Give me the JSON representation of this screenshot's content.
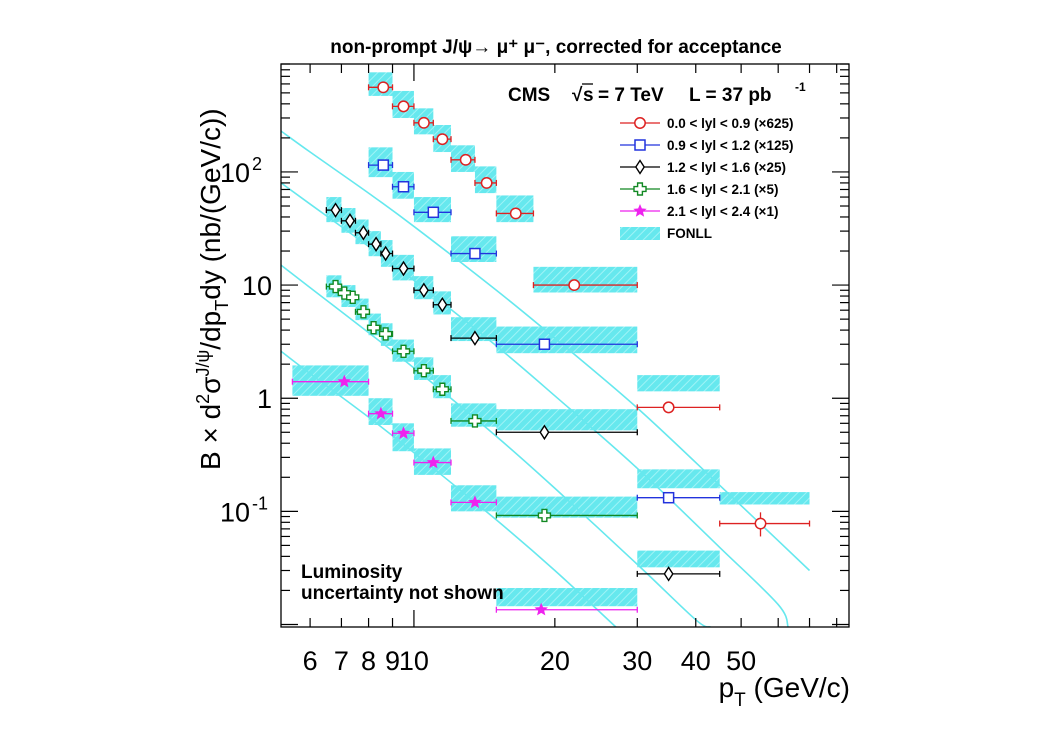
{
  "chart_data": {
    "type": "scatter",
    "title": "non-prompt J/ψ→ μ⁺ μ⁻, corrected for acceptance",
    "xlabel": "p_T (GeV/c)",
    "ylabel": "B × d²σ^{J/ψ}/dp_T dy (nb/(GeV/c))",
    "xscale": "log",
    "yscale": "log",
    "xlim": [
      5.2,
      85
    ],
    "ylim": [
      0.0095,
      900
    ],
    "x_ticks": [
      {
        "value": 6,
        "label": "6"
      },
      {
        "value": 7,
        "label": "7"
      },
      {
        "value": 8,
        "label": "8"
      },
      {
        "value": 9,
        "label": "9"
      },
      {
        "value": 10,
        "label": "10"
      },
      {
        "value": 20,
        "label": "20"
      },
      {
        "value": 30,
        "label": "30"
      },
      {
        "value": 40,
        "label": "40"
      },
      {
        "value": 50,
        "label": "50"
      }
    ],
    "y_ticks": [
      {
        "value": 0.1,
        "label": "10",
        "sup": "-1"
      },
      {
        "value": 1,
        "label": "1",
        "sup": ""
      },
      {
        "value": 10,
        "label": "10",
        "sup": ""
      },
      {
        "value": 100,
        "label": "10",
        "sup": "2"
      }
    ],
    "experiment": "CMS",
    "energy_label": "s",
    "energy_value": "= 7 TeV",
    "lumi_label": "L = 37 pb",
    "lumi_exp": "-1",
    "annotation_line1": "Luminosity",
    "annotation_line2": "uncertainty not shown",
    "theory": {
      "name": "FONLL",
      "color": "#66e8ee"
    },
    "series": [
      {
        "name": "0.0 < lyl < 0.9 (×625)",
        "marker": "circle",
        "color": "#dd2222",
        "points": [
          {
            "x": 8.6,
            "xlo": 8.0,
            "xhi": 9.0,
            "y": 560
          },
          {
            "x": 9.5,
            "xlo": 9.0,
            "xhi": 10.0,
            "y": 380
          },
          {
            "x": 10.5,
            "xlo": 10.0,
            "xhi": 11.0,
            "y": 272
          },
          {
            "x": 11.5,
            "xlo": 11.0,
            "xhi": 12.0,
            "y": 195
          },
          {
            "x": 12.9,
            "xlo": 12.0,
            "xhi": 13.5,
            "y": 128
          },
          {
            "x": 14.3,
            "xlo": 13.5,
            "xhi": 15.0,
            "y": 80
          },
          {
            "x": 16.5,
            "xlo": 15.0,
            "xhi": 18.0,
            "y": 43
          },
          {
            "x": 22.0,
            "xlo": 18.0,
            "xhi": 30.0,
            "y": 10
          },
          {
            "x": 35.0,
            "xlo": 30.0,
            "xhi": 45.0,
            "y": 0.83
          },
          {
            "x": 55.0,
            "xlo": 45.0,
            "xhi": 70.0,
            "y": 0.078,
            "ylo": 0.06,
            "yhi": 0.098
          }
        ],
        "bands": [
          {
            "xlo": 8.0,
            "xhi": 9.0,
            "ylo": 470,
            "yhi": 760
          },
          {
            "xlo": 9.0,
            "xhi": 10.0,
            "ylo": 300,
            "yhi": 520
          },
          {
            "xlo": 10.0,
            "xhi": 11.0,
            "ylo": 215,
            "yhi": 365
          },
          {
            "xlo": 11.0,
            "xhi": 12.0,
            "ylo": 150,
            "yhi": 260
          },
          {
            "xlo": 12.0,
            "xhi": 13.5,
            "ylo": 100,
            "yhi": 172
          },
          {
            "xlo": 13.5,
            "xhi": 15.0,
            "ylo": 65,
            "yhi": 112
          },
          {
            "xlo": 15.0,
            "xhi": 18.0,
            "ylo": 36,
            "yhi": 62
          },
          {
            "xlo": 18.0,
            "xhi": 30.0,
            "ylo": 8.6,
            "yhi": 14.5
          },
          {
            "xlo": 30.0,
            "xhi": 45.0,
            "ylo": 1.15,
            "yhi": 1.6
          },
          {
            "xlo": 45.0,
            "xhi": 70.0,
            "ylo": 0.115,
            "yhi": 0.148
          }
        ],
        "curve": [
          [
            5.2,
            230
          ],
          [
            6,
            150
          ],
          [
            8,
            65
          ],
          [
            10,
            33
          ],
          [
            15,
            9
          ],
          [
            20,
            3.4
          ],
          [
            30,
            0.82
          ],
          [
            45,
            0.17
          ],
          [
            60,
            0.055
          ],
          [
            70,
            0.03
          ]
        ]
      },
      {
        "name": "0.9 < lyl < 1.2 (×125)",
        "marker": "square",
        "color": "#2233dd",
        "points": [
          {
            "x": 8.6,
            "xlo": 8.0,
            "xhi": 9.0,
            "y": 115
          },
          {
            "x": 9.5,
            "xlo": 9.0,
            "xhi": 10.0,
            "y": 74
          },
          {
            "x": 11.0,
            "xlo": 10.0,
            "xhi": 12.0,
            "y": 44
          },
          {
            "x": 13.5,
            "xlo": 12.0,
            "xhi": 15.0,
            "y": 19
          },
          {
            "x": 19.0,
            "xlo": 15.0,
            "xhi": 30.0,
            "y": 3.0
          },
          {
            "x": 35.0,
            "xlo": 30.0,
            "xhi": 45.0,
            "y": 0.132
          }
        ],
        "bands": [
          {
            "xlo": 8.0,
            "xhi": 9.0,
            "ylo": 90,
            "yhi": 165
          },
          {
            "xlo": 9.0,
            "xhi": 10.0,
            "ylo": 58,
            "yhi": 100
          },
          {
            "xlo": 10.0,
            "xhi": 12.0,
            "ylo": 36,
            "yhi": 60
          },
          {
            "xlo": 12.0,
            "xhi": 15.0,
            "ylo": 16,
            "yhi": 27
          },
          {
            "xlo": 15.0,
            "xhi": 30.0,
            "ylo": 2.5,
            "yhi": 4.3
          },
          {
            "xlo": 30.0,
            "xhi": 45.0,
            "ylo": 0.16,
            "yhi": 0.235
          }
        ],
        "curve": [
          [
            5.2,
            80
          ],
          [
            6,
            52
          ],
          [
            8,
            22
          ],
          [
            10,
            11
          ],
          [
            15,
            2.9
          ],
          [
            20,
            1.05
          ],
          [
            30,
            0.24
          ],
          [
            45,
            0.048
          ],
          [
            60,
            0.015
          ],
          [
            63,
            0.0095
          ]
        ]
      },
      {
        "name": "1.2 < lyl < 1.6 (×25)",
        "marker": "diamond",
        "color": "#000000",
        "points": [
          {
            "x": 6.8,
            "xlo": 6.5,
            "xhi": 7.0,
            "y": 46
          },
          {
            "x": 7.3,
            "xlo": 7.0,
            "xhi": 7.5,
            "y": 37
          },
          {
            "x": 7.8,
            "xlo": 7.5,
            "xhi": 8.0,
            "y": 29
          },
          {
            "x": 8.3,
            "xlo": 8.0,
            "xhi": 8.5,
            "y": 23
          },
          {
            "x": 8.7,
            "xlo": 8.5,
            "xhi": 9.0,
            "y": 19
          },
          {
            "x": 9.5,
            "xlo": 9.0,
            "xhi": 10.0,
            "y": 14
          },
          {
            "x": 10.5,
            "xlo": 10.0,
            "xhi": 11.0,
            "y": 9.0
          },
          {
            "x": 11.5,
            "xlo": 11.0,
            "xhi": 12.0,
            "y": 6.7
          },
          {
            "x": 13.5,
            "xlo": 12.0,
            "xhi": 15.0,
            "y": 3.4
          },
          {
            "x": 19.0,
            "xlo": 15.0,
            "xhi": 30.0,
            "y": 0.5
          },
          {
            "x": 35.0,
            "xlo": 30.0,
            "xhi": 45.0,
            "y": 0.028
          }
        ],
        "bands": [
          {
            "xlo": 6.5,
            "xhi": 7.0,
            "ylo": 36,
            "yhi": 60
          },
          {
            "xlo": 7.0,
            "xhi": 7.5,
            "ylo": 29,
            "yhi": 48
          },
          {
            "xlo": 7.5,
            "xhi": 8.0,
            "ylo": 23,
            "yhi": 38
          },
          {
            "xlo": 8.0,
            "xhi": 8.5,
            "ylo": 18,
            "yhi": 30
          },
          {
            "xlo": 8.5,
            "xhi": 9.0,
            "ylo": 14.5,
            "yhi": 25
          },
          {
            "xlo": 9.0,
            "xhi": 10.0,
            "ylo": 11,
            "yhi": 18.5
          },
          {
            "xlo": 10.0,
            "xhi": 11.0,
            "ylo": 7.5,
            "yhi": 12
          },
          {
            "xlo": 11.0,
            "xhi": 12.0,
            "ylo": 5.5,
            "yhi": 8.8
          },
          {
            "xlo": 12.0,
            "xhi": 15.0,
            "ylo": 3.2,
            "yhi": 5.2
          },
          {
            "xlo": 15.0,
            "xhi": 30.0,
            "ylo": 0.52,
            "yhi": 0.8
          },
          {
            "xlo": 30.0,
            "xhi": 45.0,
            "ylo": 0.032,
            "yhi": 0.045
          }
        ],
        "curve": [
          [
            5.2,
            15
          ],
          [
            6,
            9.5
          ],
          [
            8,
            3.8
          ],
          [
            10,
            1.85
          ],
          [
            15,
            0.46
          ],
          [
            20,
            0.16
          ],
          [
            30,
            0.034
          ],
          [
            40,
            0.011
          ],
          [
            43,
            0.0095
          ]
        ]
      },
      {
        "name": "1.6 < lyl < 2.1 (×5)",
        "marker": "cross",
        "color": "#118822",
        "points": [
          {
            "x": 6.8,
            "xlo": 6.5,
            "xhi": 7.0,
            "y": 9.7
          },
          {
            "x": 7.1,
            "xlo": 7.0,
            "xhi": 7.25,
            "y": 8.5
          },
          {
            "x": 7.4,
            "xlo": 7.25,
            "xhi": 7.5,
            "y": 7.8
          },
          {
            "x": 7.8,
            "xlo": 7.5,
            "xhi": 8.0,
            "y": 5.8
          },
          {
            "x": 8.2,
            "xlo": 8.0,
            "xhi": 8.5,
            "y": 4.2
          },
          {
            "x": 8.7,
            "xlo": 8.5,
            "xhi": 9.0,
            "y": 3.7
          },
          {
            "x": 9.5,
            "xlo": 9.0,
            "xhi": 10.0,
            "y": 2.6
          },
          {
            "x": 10.5,
            "xlo": 10.0,
            "xhi": 11.0,
            "y": 1.75
          },
          {
            "x": 11.5,
            "xlo": 11.0,
            "xhi": 12.0,
            "y": 1.2
          },
          {
            "x": 13.5,
            "xlo": 12.0,
            "xhi": 15.0,
            "y": 0.63
          },
          {
            "x": 19.0,
            "xlo": 15.0,
            "xhi": 30.0,
            "y": 0.092
          }
        ],
        "bands": [
          {
            "xlo": 6.5,
            "xhi": 7.0,
            "ylo": 7.8,
            "yhi": 12.2
          },
          {
            "xlo": 7.0,
            "xhi": 7.5,
            "ylo": 6.4,
            "yhi": 10
          },
          {
            "xlo": 7.5,
            "xhi": 8.0,
            "ylo": 4.9,
            "yhi": 7.6
          },
          {
            "xlo": 8.0,
            "xhi": 8.5,
            "ylo": 3.6,
            "yhi": 5.6
          },
          {
            "xlo": 8.5,
            "xhi": 9.0,
            "ylo": 2.9,
            "yhi": 4.6
          },
          {
            "xlo": 9.0,
            "xhi": 10.0,
            "ylo": 2.1,
            "yhi": 3.3
          },
          {
            "xlo": 10.0,
            "xhi": 11.0,
            "ylo": 1.45,
            "yhi": 2.3
          },
          {
            "xlo": 11.0,
            "xhi": 12.0,
            "ylo": 1.0,
            "yhi": 1.6
          },
          {
            "xlo": 12.0,
            "xhi": 15.0,
            "ylo": 0.56,
            "yhi": 0.9
          },
          {
            "xlo": 15.0,
            "xhi": 30.0,
            "ylo": 0.088,
            "yhi": 0.135
          }
        ],
        "curve": [
          [
            5.2,
            2.6
          ],
          [
            6,
            1.65
          ],
          [
            8,
            0.68
          ],
          [
            10,
            0.33
          ],
          [
            15,
            0.084
          ],
          [
            20,
            0.03
          ],
          [
            27,
            0.0095
          ]
        ]
      },
      {
        "name": "2.1 < lyl < 2.4 (×1)",
        "marker": "star",
        "color": "#ee22ee",
        "points": [
          {
            "x": 7.1,
            "xlo": 5.5,
            "xhi": 8.0,
            "y": 1.4
          },
          {
            "x": 8.5,
            "xlo": 8.0,
            "xhi": 9.0,
            "y": 0.73
          },
          {
            "x": 9.5,
            "xlo": 9.0,
            "xhi": 10.0,
            "y": 0.49
          },
          {
            "x": 11.0,
            "xlo": 10.0,
            "xhi": 12.0,
            "y": 0.27
          },
          {
            "x": 13.5,
            "xlo": 12.0,
            "xhi": 15.0,
            "y": 0.12
          },
          {
            "x": 18.7,
            "xlo": 15.0,
            "xhi": 30.0,
            "y": 0.0135
          }
        ],
        "bands": [
          {
            "xlo": 5.5,
            "xhi": 8.0,
            "ylo": 1.05,
            "yhi": 1.95
          },
          {
            "xlo": 8.0,
            "xhi": 9.0,
            "ylo": 0.58,
            "yhi": 1.0
          },
          {
            "xlo": 9.0,
            "xhi": 10.0,
            "ylo": 0.34,
            "yhi": 0.6
          },
          {
            "xlo": 10.0,
            "xhi": 12.0,
            "ylo": 0.21,
            "yhi": 0.36
          },
          {
            "xlo": 12.0,
            "xhi": 15.0,
            "ylo": 0.1,
            "yhi": 0.17
          },
          {
            "xlo": 15.0,
            "xhi": 30.0,
            "ylo": 0.0145,
            "yhi": 0.021
          }
        ]
      }
    ]
  }
}
